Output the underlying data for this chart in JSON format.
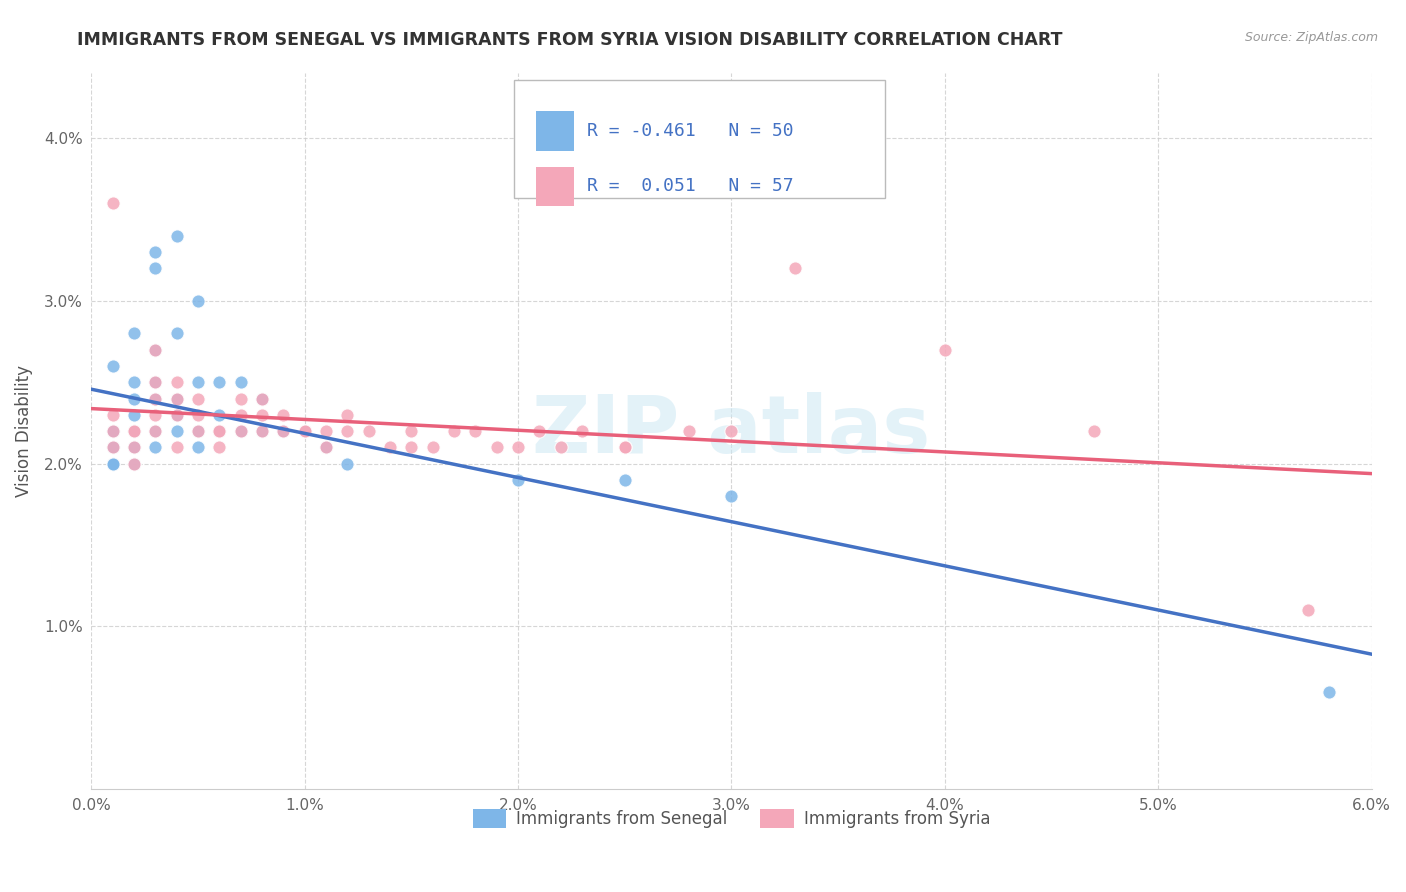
{
  "title": "IMMIGRANTS FROM SENEGAL VS IMMIGRANTS FROM SYRIA VISION DISABILITY CORRELATION CHART",
  "source": "Source: ZipAtlas.com",
  "ylabel": "Vision Disability",
  "xlim": [
    0.0,
    0.06
  ],
  "ylim": [
    0.0,
    0.044
  ],
  "xtick_labels": [
    "0.0%",
    "1.0%",
    "2.0%",
    "3.0%",
    "4.0%",
    "5.0%",
    "6.0%"
  ],
  "xtick_vals": [
    0.0,
    0.01,
    0.02,
    0.03,
    0.04,
    0.05,
    0.06
  ],
  "ytick_labels": [
    "1.0%",
    "2.0%",
    "3.0%",
    "4.0%"
  ],
  "ytick_vals": [
    0.01,
    0.02,
    0.03,
    0.04
  ],
  "senegal_color": "#7EB6E8",
  "syria_color": "#F4A7B9",
  "senegal_line_color": "#4472C4",
  "syria_line_color": "#E8607A",
  "R_senegal": -0.461,
  "N_senegal": 50,
  "R_syria": 0.051,
  "N_syria": 57,
  "senegal_x": [
    0.001,
    0.001,
    0.001,
    0.001,
    0.001,
    0.001,
    0.001,
    0.001,
    0.001,
    0.001,
    0.002,
    0.002,
    0.002,
    0.002,
    0.002,
    0.002,
    0.002,
    0.002,
    0.002,
    0.003,
    0.003,
    0.003,
    0.003,
    0.003,
    0.003,
    0.003,
    0.004,
    0.004,
    0.004,
    0.004,
    0.004,
    0.005,
    0.005,
    0.005,
    0.005,
    0.006,
    0.006,
    0.006,
    0.007,
    0.007,
    0.008,
    0.008,
    0.009,
    0.01,
    0.011,
    0.012,
    0.02,
    0.025,
    0.03,
    0.058
  ],
  "senegal_y": [
    0.026,
    0.022,
    0.022,
    0.021,
    0.021,
    0.02,
    0.02,
    0.02,
    0.021,
    0.022,
    0.028,
    0.025,
    0.024,
    0.023,
    0.022,
    0.022,
    0.021,
    0.021,
    0.02,
    0.033,
    0.032,
    0.027,
    0.025,
    0.024,
    0.022,
    0.021,
    0.034,
    0.028,
    0.024,
    0.023,
    0.022,
    0.03,
    0.025,
    0.022,
    0.021,
    0.025,
    0.023,
    0.022,
    0.025,
    0.022,
    0.024,
    0.022,
    0.022,
    0.022,
    0.021,
    0.02,
    0.019,
    0.019,
    0.018,
    0.006
  ],
  "syria_x": [
    0.001,
    0.001,
    0.001,
    0.001,
    0.002,
    0.002,
    0.002,
    0.002,
    0.003,
    0.003,
    0.003,
    0.003,
    0.003,
    0.004,
    0.004,
    0.004,
    0.004,
    0.005,
    0.005,
    0.005,
    0.006,
    0.006,
    0.006,
    0.007,
    0.007,
    0.007,
    0.008,
    0.008,
    0.008,
    0.009,
    0.009,
    0.01,
    0.01,
    0.011,
    0.011,
    0.012,
    0.012,
    0.013,
    0.014,
    0.015,
    0.015,
    0.016,
    0.017,
    0.018,
    0.019,
    0.02,
    0.021,
    0.022,
    0.023,
    0.025,
    0.025,
    0.028,
    0.03,
    0.033,
    0.04,
    0.047,
    0.057
  ],
  "syria_y": [
    0.036,
    0.023,
    0.022,
    0.021,
    0.022,
    0.022,
    0.021,
    0.02,
    0.027,
    0.025,
    0.024,
    0.023,
    0.022,
    0.025,
    0.024,
    0.023,
    0.021,
    0.024,
    0.023,
    0.022,
    0.022,
    0.022,
    0.021,
    0.024,
    0.023,
    0.022,
    0.024,
    0.023,
    0.022,
    0.023,
    0.022,
    0.022,
    0.022,
    0.022,
    0.021,
    0.023,
    0.022,
    0.022,
    0.021,
    0.022,
    0.021,
    0.021,
    0.022,
    0.022,
    0.021,
    0.021,
    0.022,
    0.021,
    0.022,
    0.021,
    0.021,
    0.022,
    0.022,
    0.032,
    0.027,
    0.022,
    0.011
  ]
}
